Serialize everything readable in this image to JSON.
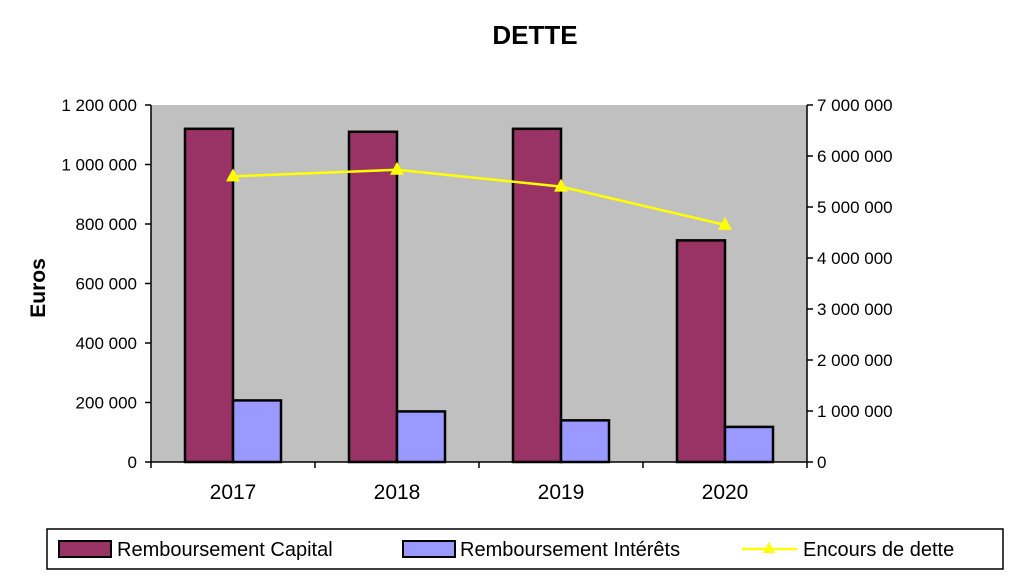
{
  "chart_data": {
    "type": "bar",
    "title": "DETTE",
    "ylabel": "Euros",
    "y2label": "",
    "categories": [
      "2017",
      "2018",
      "2019",
      "2020"
    ],
    "ylim": [
      0,
      1200000
    ],
    "y2lim": [
      0,
      7000000
    ],
    "yticks": [
      "0",
      "200 000",
      "400 000",
      "600 000",
      "800 000",
      "1 000 000",
      "1 200 000"
    ],
    "y2ticks": [
      "0",
      "1 000 000",
      "2 000 000",
      "3 000 000",
      "4 000 000",
      "5 000 000",
      "6 000 000",
      "7 000 000"
    ],
    "grid": false,
    "plot_background": "#c0c0c0",
    "legend_position": "bottom",
    "series": [
      {
        "name": "Remboursement Capital",
        "type": "bar",
        "axis": "left",
        "color": "#993366",
        "values": [
          1120000,
          1110000,
          1120000,
          745000
        ]
      },
      {
        "name": "Remboursement Intérêts",
        "type": "bar",
        "axis": "left",
        "color": "#9999ff",
        "values": [
          207000,
          170000,
          140000,
          118000
        ]
      },
      {
        "name": "Encours de dette",
        "type": "line",
        "axis": "right",
        "color": "#ffff00",
        "marker": "triangle",
        "values": [
          5600000,
          5730000,
          5400000,
          4650000
        ]
      }
    ]
  }
}
